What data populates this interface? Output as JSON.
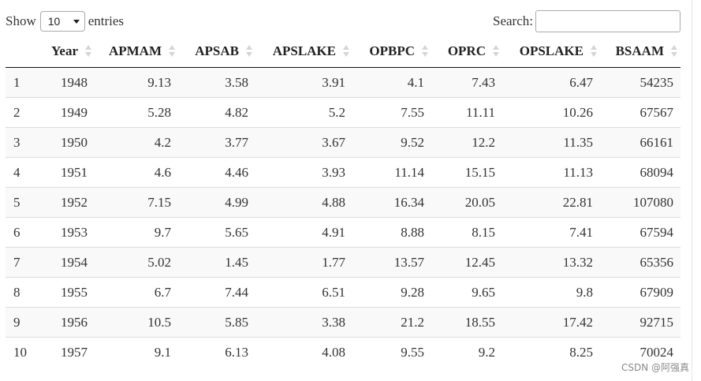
{
  "controls": {
    "show_label": "Show",
    "entries_value": "10",
    "entries_label": "entries",
    "search_label": "Search:",
    "search_value": ""
  },
  "table": {
    "columns": [
      "",
      "Year",
      "APMAM",
      "APSAB",
      "APSLAKE",
      "OPBPC",
      "OPRC",
      "OPSLAKE",
      "BSAAM"
    ],
    "rows": [
      [
        "1",
        "1948",
        "9.13",
        "3.58",
        "3.91",
        "4.1",
        "7.43",
        "6.47",
        "54235"
      ],
      [
        "2",
        "1949",
        "5.28",
        "4.82",
        "5.2",
        "7.55",
        "11.11",
        "10.26",
        "67567"
      ],
      [
        "3",
        "1950",
        "4.2",
        "3.77",
        "3.67",
        "9.52",
        "12.2",
        "11.35",
        "66161"
      ],
      [
        "4",
        "1951",
        "4.6",
        "4.46",
        "3.93",
        "11.14",
        "15.15",
        "11.13",
        "68094"
      ],
      [
        "5",
        "1952",
        "7.15",
        "4.99",
        "4.88",
        "16.34",
        "20.05",
        "22.81",
        "107080"
      ],
      [
        "6",
        "1953",
        "9.7",
        "5.65",
        "4.91",
        "8.88",
        "8.15",
        "7.41",
        "67594"
      ],
      [
        "7",
        "1954",
        "5.02",
        "1.45",
        "1.77",
        "13.57",
        "12.45",
        "13.32",
        "65356"
      ],
      [
        "8",
        "1955",
        "6.7",
        "7.44",
        "6.51",
        "9.28",
        "9.65",
        "9.8",
        "67909"
      ],
      [
        "9",
        "1956",
        "10.5",
        "5.85",
        "3.38",
        "21.2",
        "18.55",
        "17.42",
        "92715"
      ],
      [
        "10",
        "1957",
        "9.1",
        "6.13",
        "4.08",
        "9.55",
        "9.2",
        "8.25",
        "70024"
      ]
    ]
  },
  "watermark": "CSDN @阿强真"
}
